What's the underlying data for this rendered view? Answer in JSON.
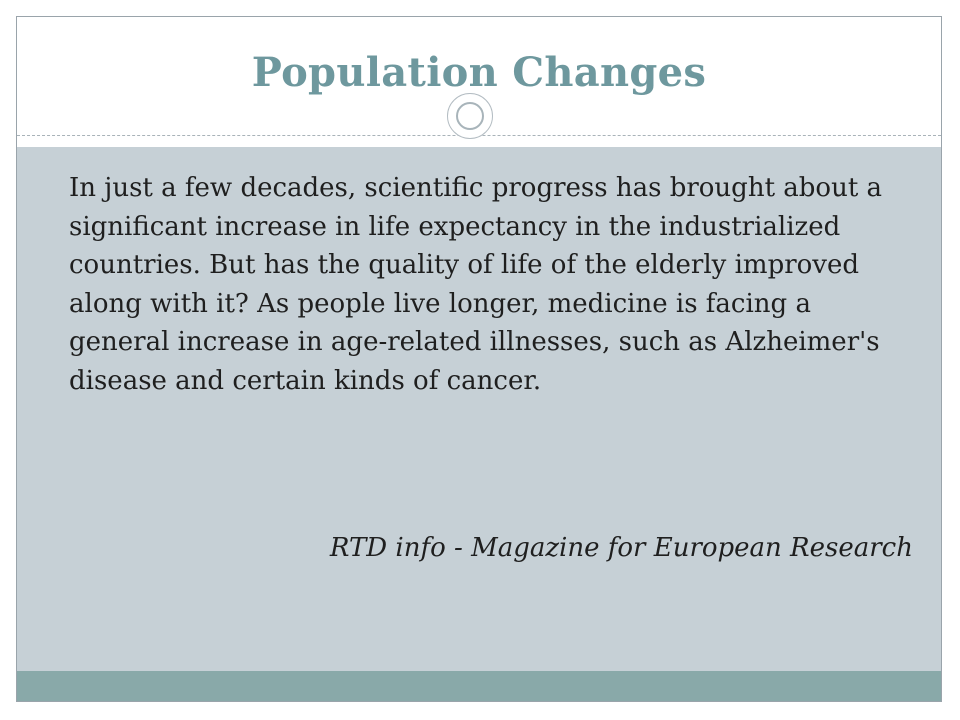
{
  "slide": {
    "title": "Population Changes",
    "body": "In just a few decades, scientific progress has brought about a significant increase in life expectancy in the industrialized countries. But has the quality of life of the elderly improved along with it? As people live longer, medicine is facing a general increase in age-related illnesses, such as Alzheimer's disease and certain kinds of cancer.",
    "citation": "RTD info - Magazine for European Research"
  },
  "colors": {
    "title": "#6e989e",
    "content_background": "#c6d0d6",
    "footer_band": "#89a9a9",
    "text": "#1f1f1f"
  },
  "icons": {
    "ornament": "circle-ornament-icon"
  }
}
